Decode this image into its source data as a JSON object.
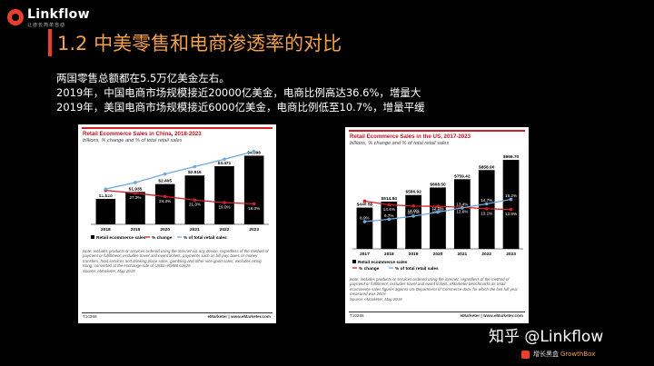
{
  "brand": {
    "name": "Linkflow",
    "tagline": "让增长简单自动"
  },
  "slide": {
    "title": "1.2 中美零售和电商渗透率的对比",
    "bullets": [
      "两国零售总额都在5.5万亿美金左右。",
      "2019年，中国电商市场规模接近20000亿美金，电商比例高达36.6%，增量大",
      "2019年，美国电商市场规模接近6000亿美金，电商比例低至10.7%，增量平缓"
    ]
  },
  "watermark": "知乎 @Linkflow",
  "growthbox": {
    "cn": "增长黑盒",
    "en": "GrowthBox"
  },
  "colors": {
    "accent": "#f2a14a",
    "brand_red": "#e8402b",
    "bar": "#000000",
    "change_line": "#d21f26",
    "share_line": "#6fa8dc"
  },
  "chart_data": [
    {
      "type": "bar",
      "title": "Retail Ecommerce Sales in China, 2018-2023",
      "subtitle": "trillions, % change and % of total retail sales",
      "categories": [
        "2018",
        "2019",
        "2020",
        "2021",
        "2022",
        "2023"
      ],
      "bar_labels": [
        "$1.520",
        "$1.935",
        "$2.405",
        "$2.916",
        "$3.471",
        "$4.096"
      ],
      "series": [
        {
          "name": "Retail ecommerce sales",
          "values": [
            1.52,
            1.935,
            2.405,
            2.916,
            3.471,
            4.096
          ]
        },
        {
          "name": "% change",
          "values": [
            29.7,
            27.3,
            24.3,
            21.3,
            19.0,
            18.0
          ]
        },
        {
          "name": "% of total retail sales",
          "values": [
            30.9,
            36.6,
            44.0,
            50.5,
            57.0,
            63.9
          ]
        }
      ],
      "ylim": [
        0,
        4.5
      ],
      "note": "Note: includes products or services ordered using the internet via any device, regardless of the method of payment or fulfillment; excludes travel and event tickets, payments such as bill pay, taxes or money transfers, food services and drinking place sales, gambling and other vice good sales; excludes Hong Kong; converted at the exchange rate of US$1=RMB6.61629",
      "source": "Source: eMarketer, May 2019",
      "chart_id": "T10368",
      "brand_mark": "eMarketer | www.eMarketer.com"
    },
    {
      "type": "bar",
      "title": "Retail Ecommerce Sales in the US, 2017-2023",
      "subtitle": "billions, % change and % of total retail sales",
      "categories": [
        "2017",
        "2018",
        "2019",
        "2020",
        "2021",
        "2022",
        "2023"
      ],
      "bar_labels": [
        "$449.88",
        "$514.84",
        "$586.92",
        "$668.50",
        "$759.42",
        "$858.90",
        "$969.70"
      ],
      "series": [
        {
          "name": "Retail ecommerce sales",
          "values": [
            449.88,
            514.84,
            586.92,
            668.5,
            759.42,
            858.9,
            969.7
          ]
        },
        {
          "name": "% change",
          "values": [
            15.6,
            14.4,
            14.0,
            13.9,
            13.6,
            13.1,
            12.9
          ]
        },
        {
          "name": "% of total retail sales",
          "values": [
            8.9,
            9.7,
            10.7,
            12.0,
            13.4,
            14.7,
            16.2
          ]
        }
      ],
      "ylim": [
        0,
        1000
      ],
      "note": "Note: includes products or services ordered using the internet, regardless of the method of payment or fulfillment; excludes travel and event tickets; eMarketer benchmarks its retail ecommerce sales figures against US Department of Commerce data, for which the last full year measured was 2018",
      "source": "Source: eMarketer, May 2019",
      "chart_id": "T10286",
      "brand_mark": "eMarketer | www.eMarketer.com"
    }
  ]
}
